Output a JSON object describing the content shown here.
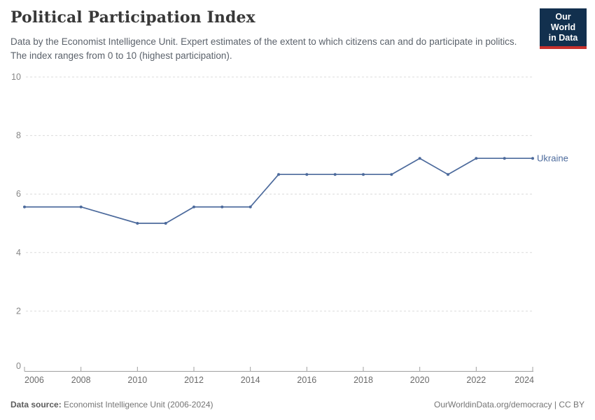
{
  "header": {
    "title": "Political Participation Index",
    "subtitle": "Data by the Economist Intelligence Unit. Expert estimates of the extent to which citizens can and do participate in politics. The index ranges from 0 to 10 (highest participation)."
  },
  "logo": {
    "line1": "Our World",
    "line2": "in Data",
    "bg_color": "#12304e",
    "accent_color": "#c7302c"
  },
  "chart_data": {
    "type": "line",
    "title": "Political Participation Index",
    "x": [
      2006,
      2008,
      2010,
      2011,
      2012,
      2013,
      2014,
      2015,
      2016,
      2017,
      2018,
      2019,
      2020,
      2021,
      2022,
      2023,
      2024
    ],
    "series": [
      {
        "name": "Ukraine",
        "color": "#4c6a9c",
        "values": [
          5.56,
          5.56,
          5.0,
          5.0,
          5.56,
          5.56,
          5.56,
          6.67,
          6.67,
          6.67,
          6.67,
          6.67,
          7.22,
          6.67,
          7.22,
          7.22,
          7.22
        ]
      }
    ],
    "xlabel": "",
    "ylabel": "",
    "ylim": [
      0,
      10
    ],
    "xlim": [
      2006,
      2024
    ],
    "yticks": [
      0,
      2,
      4,
      6,
      8,
      10
    ],
    "xticks": [
      2006,
      2008,
      2010,
      2012,
      2014,
      2016,
      2018,
      2020,
      2022,
      2024
    ],
    "grid": "horizontal-dashed",
    "legend_position": "end-of-line-label",
    "grid_color": "#dcdcdc",
    "axis_color": "#a0a0a0",
    "ytick_label_color": "#878787",
    "xtick_label_color": "#6b6b6b"
  },
  "footer": {
    "source_label": "Data source:",
    "source_value": " Economist Intelligence Unit (2006-2024)",
    "right_text": "OurWorldinData.org/democracy | CC BY"
  }
}
